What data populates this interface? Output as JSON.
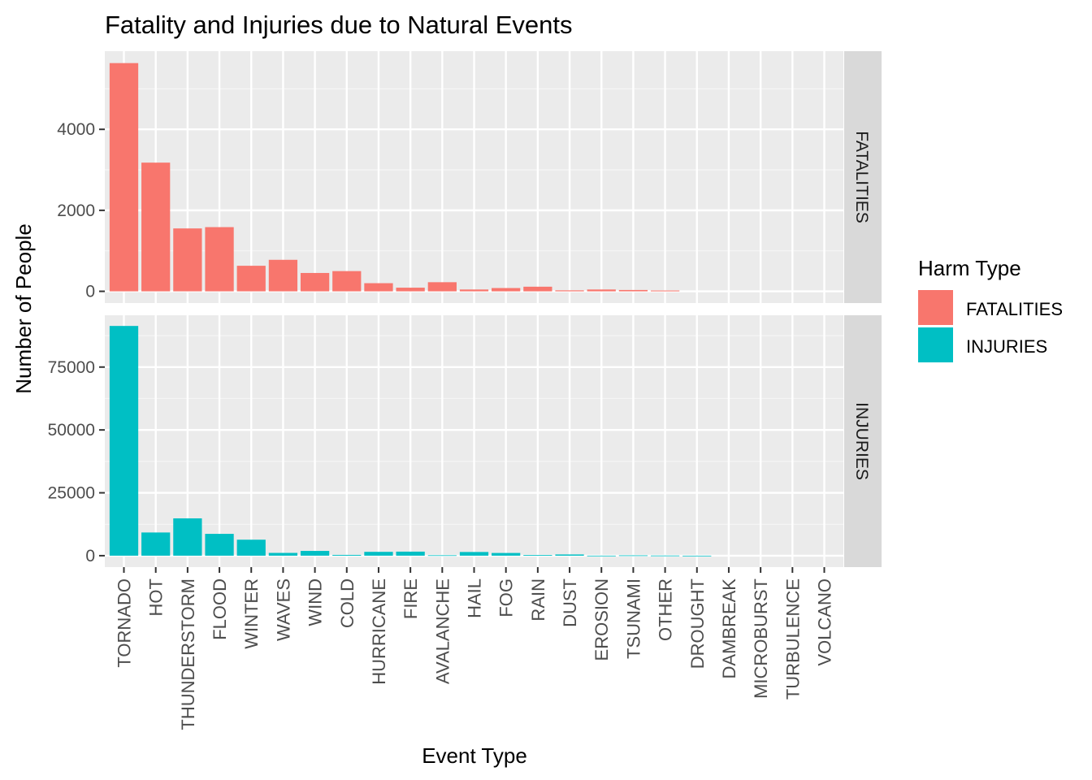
{
  "chart_data": {
    "type": "bar",
    "title": "Fatality and Injuries due to Natural Events",
    "xlabel": "Event Type",
    "ylabel": "Number of People",
    "categories": [
      "TORNADO",
      "HOT",
      "THUNDERSTORM",
      "FLOOD",
      "WINTER",
      "WAVES",
      "WIND",
      "COLD",
      "HURRICANE",
      "FIRE",
      "AVALANCHE",
      "HAIL",
      "FOG",
      "RAIN",
      "DUST",
      "EROSION",
      "TSUNAMI",
      "OTHER",
      "DROUGHT",
      "DAMBREAK",
      "MICROBURST",
      "TURBULENCE",
      "VOLCANO"
    ],
    "grid": true,
    "legend": {
      "title": "Harm Type",
      "position": "right",
      "entries": [
        {
          "label": "FATALITIES",
          "color": "#F8766D"
        },
        {
          "label": "INJURIES",
          "color": "#00BFC4"
        }
      ]
    },
    "facets": [
      {
        "strip_label": "FATALITIES",
        "series_name": "FATALITIES",
        "color": "#F8766D",
        "ylim": [
          -290,
          5930
        ],
        "yticks": [
          0,
          2000,
          4000
        ],
        "values": [
          5636,
          3178,
          1553,
          1585,
          631,
          778,
          453,
          499,
          201,
          90,
          225,
          45,
          81,
          114,
          24,
          45,
          33,
          20,
          0,
          0,
          0,
          0,
          0
        ]
      },
      {
        "strip_label": "INJURIES",
        "series_name": "INJURIES",
        "color": "#00BFC4",
        "ylim": [
          -4550,
          95600
        ],
        "yticks": [
          0,
          25000,
          50000,
          75000
        ],
        "values": [
          91346,
          9224,
          14837,
          8677,
          6357,
          1106,
          1896,
          320,
          1526,
          1608,
          170,
          1467,
          1077,
          280,
          483,
          14,
          129,
          60,
          5,
          0,
          0,
          0,
          0
        ]
      }
    ]
  }
}
